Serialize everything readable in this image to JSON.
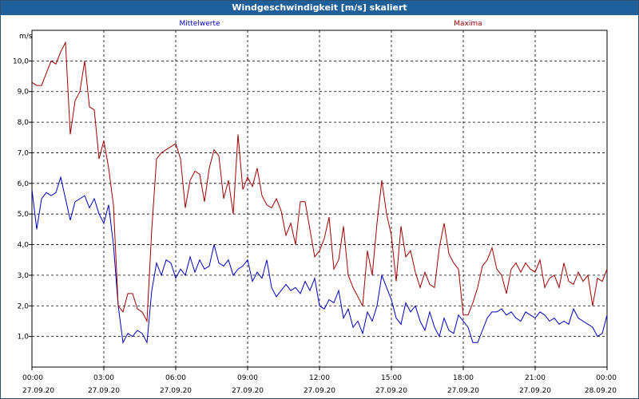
{
  "window": {
    "title": "Windgeschwindigkeit [m/s] skaliert"
  },
  "chart_data": {
    "type": "line",
    "ylabel": "m/s",
    "ylim": [
      0.0,
      11.0
    ],
    "yticks": [
      "1,0",
      "2,0",
      "3,0",
      "4,0",
      "5,0",
      "6,0",
      "7,0",
      "8,0",
      "9,0",
      "10,0"
    ],
    "ytick_values": [
      1,
      2,
      3,
      4,
      5,
      6,
      7,
      8,
      9,
      10
    ],
    "xlim": [
      0,
      24
    ],
    "xtick_values": [
      0,
      3,
      6,
      9,
      12,
      15,
      18,
      21,
      24
    ],
    "xticks": [
      {
        "time": "00:00",
        "date": "27.09.20"
      },
      {
        "time": "03:00",
        "date": "27.09.20"
      },
      {
        "time": "06:00",
        "date": "27.09.20"
      },
      {
        "time": "09:00",
        "date": "27.09.20"
      },
      {
        "time": "12:00",
        "date": "27.09.20"
      },
      {
        "time": "15:00",
        "date": "27.09.20"
      },
      {
        "time": "18:00",
        "date": "27.09.20"
      },
      {
        "time": "21:00",
        "date": "27.09.20"
      },
      {
        "time": "00:00",
        "date": "28.09.20"
      }
    ],
    "grid": true,
    "series": [
      {
        "name": "Mittelwerte",
        "color": "#0000c0",
        "x": [
          0,
          0.2,
          0.4,
          0.6,
          0.8,
          1.0,
          1.2,
          1.4,
          1.6,
          1.8,
          2.0,
          2.2,
          2.4,
          2.6,
          2.8,
          3.0,
          3.2,
          3.4,
          3.6,
          3.8,
          4.0,
          4.2,
          4.4,
          4.6,
          4.8,
          5.0,
          5.2,
          5.4,
          5.6,
          5.8,
          6.0,
          6.2,
          6.4,
          6.6,
          6.8,
          7.0,
          7.2,
          7.4,
          7.6,
          7.8,
          8.0,
          8.2,
          8.4,
          8.6,
          8.8,
          9.0,
          9.2,
          9.4,
          9.6,
          9.8,
          10.0,
          10.2,
          10.4,
          10.6,
          10.8,
          11.0,
          11.2,
          11.4,
          11.6,
          11.8,
          12.0,
          12.2,
          12.4,
          12.6,
          12.8,
          13.0,
          13.2,
          13.4,
          13.6,
          13.8,
          14.0,
          14.2,
          14.4,
          14.6,
          14.8,
          15.0,
          15.2,
          15.4,
          15.6,
          15.8,
          16.0,
          16.2,
          16.4,
          16.6,
          16.8,
          17.0,
          17.2,
          17.4,
          17.6,
          17.8,
          18.0,
          18.2,
          18.4,
          18.6,
          18.8,
          19.0,
          19.2,
          19.4,
          19.6,
          19.8,
          20.0,
          20.2,
          20.4,
          20.6,
          20.8,
          21.0,
          21.2,
          21.4,
          21.6,
          21.8,
          22.0,
          22.2,
          22.4,
          22.6,
          22.8,
          23.0,
          23.2,
          23.4,
          23.6,
          23.8,
          24.0
        ],
        "y": [
          5.8,
          4.5,
          5.5,
          5.7,
          5.6,
          5.7,
          6.2,
          5.5,
          4.8,
          5.4,
          5.5,
          5.6,
          5.2,
          5.5,
          5.0,
          4.7,
          5.3,
          4.0,
          2.0,
          0.8,
          1.1,
          1.0,
          1.2,
          1.1,
          0.8,
          2.5,
          3.4,
          3.0,
          3.5,
          3.4,
          2.9,
          3.2,
          3.0,
          3.6,
          3.1,
          3.5,
          3.2,
          3.3,
          4.0,
          3.4,
          3.3,
          3.5,
          3.0,
          3.2,
          3.3,
          3.5,
          2.8,
          3.1,
          2.9,
          3.5,
          2.6,
          2.3,
          2.5,
          2.7,
          2.5,
          2.6,
          2.4,
          2.8,
          2.5,
          2.9,
          2.0,
          1.9,
          2.2,
          2.1,
          2.5,
          1.6,
          1.9,
          1.3,
          1.5,
          1.1,
          1.8,
          1.5,
          2.0,
          3.0,
          2.6,
          2.2,
          1.6,
          1.4,
          2.1,
          1.8,
          2.0,
          1.5,
          1.2,
          1.8,
          1.3,
          1.0,
          1.6,
          1.2,
          1.1,
          1.7,
          1.5,
          1.3,
          0.8,
          0.8,
          1.2,
          1.6,
          1.8,
          1.8,
          1.9,
          1.7,
          1.8,
          1.6,
          1.5,
          1.8,
          1.7,
          1.6,
          1.8,
          1.7,
          1.5,
          1.6,
          1.4,
          1.5,
          1.4,
          1.9,
          1.6,
          1.5,
          1.4,
          1.3,
          1.0,
          1.1,
          1.7
        ]
      },
      {
        "name": "Maxima",
        "color": "#a00000",
        "x": [
          0,
          0.2,
          0.4,
          0.6,
          0.8,
          1.0,
          1.2,
          1.4,
          1.6,
          1.8,
          2.0,
          2.2,
          2.4,
          2.6,
          2.8,
          3.0,
          3.2,
          3.4,
          3.6,
          3.8,
          4.0,
          4.2,
          4.4,
          4.6,
          4.8,
          5.0,
          5.2,
          5.4,
          5.6,
          5.8,
          6.0,
          6.2,
          6.4,
          6.6,
          6.8,
          7.0,
          7.2,
          7.4,
          7.6,
          7.8,
          8.0,
          8.2,
          8.4,
          8.6,
          8.8,
          9.0,
          9.2,
          9.4,
          9.6,
          9.8,
          10.0,
          10.2,
          10.4,
          10.6,
          10.8,
          11.0,
          11.2,
          11.4,
          11.6,
          11.8,
          12.0,
          12.2,
          12.4,
          12.6,
          12.8,
          13.0,
          13.2,
          13.4,
          13.6,
          13.8,
          14.0,
          14.2,
          14.4,
          14.6,
          14.8,
          15.0,
          15.2,
          15.4,
          15.6,
          15.8,
          16.0,
          16.2,
          16.4,
          16.6,
          16.8,
          17.0,
          17.2,
          17.4,
          17.6,
          17.8,
          18.0,
          18.2,
          18.4,
          18.6,
          18.8,
          19.0,
          19.2,
          19.4,
          19.6,
          19.8,
          20.0,
          20.2,
          20.4,
          20.6,
          20.8,
          21.0,
          21.2,
          21.4,
          21.6,
          21.8,
          22.0,
          22.2,
          22.4,
          22.6,
          22.8,
          23.0,
          23.2,
          23.4,
          23.6,
          23.8,
          24.0
        ],
        "y": [
          9.3,
          9.2,
          9.2,
          9.6,
          10.0,
          9.9,
          10.3,
          10.6,
          7.6,
          8.7,
          9.0,
          10.0,
          8.5,
          8.4,
          6.8,
          7.4,
          6.5,
          5.3,
          2.0,
          1.8,
          2.4,
          2.4,
          1.9,
          1.8,
          1.5,
          4.5,
          6.8,
          7.0,
          7.1,
          7.2,
          7.3,
          6.8,
          5.2,
          6.1,
          6.4,
          6.3,
          5.4,
          6.5,
          7.1,
          6.9,
          5.5,
          6.1,
          5.0,
          7.6,
          5.8,
          6.2,
          5.9,
          6.5,
          5.6,
          5.3,
          5.2,
          5.5,
          5.1,
          4.3,
          4.7,
          4.0,
          5.4,
          5.4,
          4.5,
          3.6,
          3.8,
          4.2,
          4.9,
          3.2,
          3.5,
          4.6,
          3.0,
          2.6,
          2.3,
          2.0,
          3.8,
          3.0,
          4.7,
          6.1,
          5.0,
          4.3,
          2.8,
          4.6,
          3.6,
          3.8,
          3.1,
          2.6,
          3.1,
          2.7,
          2.6,
          3.9,
          4.7,
          3.7,
          3.4,
          3.2,
          1.7,
          1.7,
          2.1,
          2.6,
          3.3,
          3.5,
          3.9,
          3.2,
          3.0,
          2.4,
          3.2,
          3.4,
          3.1,
          3.4,
          3.2,
          3.1,
          3.5,
          2.6,
          2.9,
          3.0,
          2.6,
          3.4,
          2.8,
          2.7,
          3.1,
          2.8,
          3.0,
          2.0,
          2.9,
          2.8,
          3.2
        ]
      }
    ]
  }
}
